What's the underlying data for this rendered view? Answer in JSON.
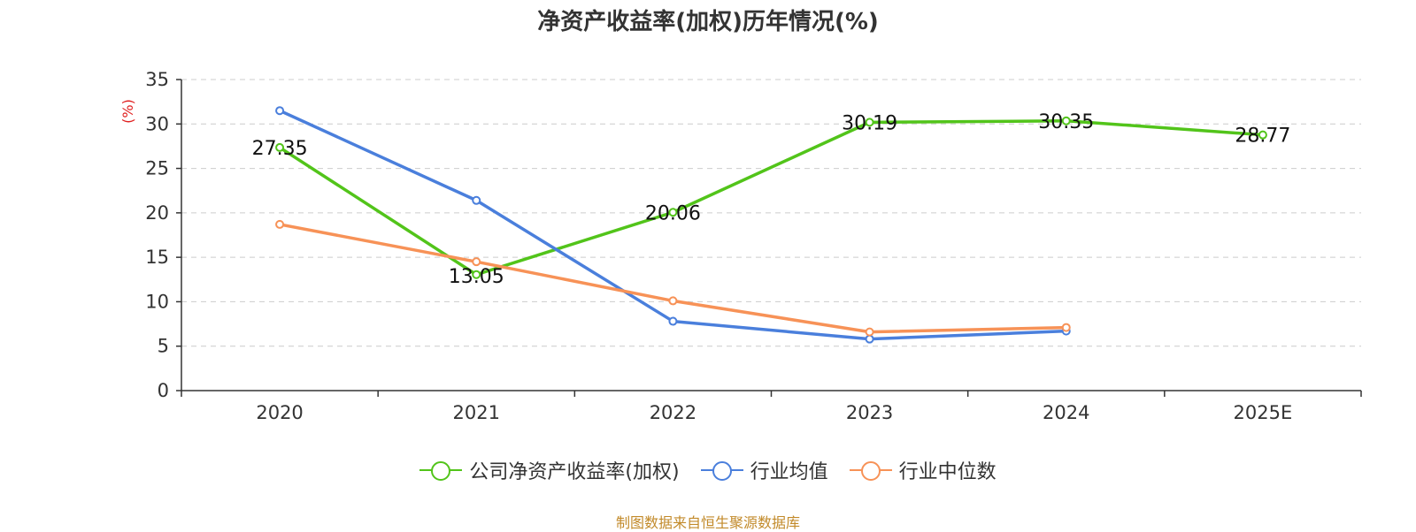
{
  "title": "净资产收益率(加权)历年情况(%)",
  "source": "制图数据来自恒生聚源数据库",
  "chart_data": {
    "type": "line",
    "categories": [
      "2020",
      "2021",
      "2022",
      "2023",
      "2024",
      "2025E"
    ],
    "ylabel": "(%)",
    "ylim": [
      0,
      35
    ],
    "yticks": [
      0,
      5,
      10,
      15,
      20,
      25,
      30,
      35
    ],
    "grid": true,
    "legend_position": "bottom",
    "series": [
      {
        "name": "公司净资产收益率(加权)",
        "color": "#52c41a",
        "values": [
          27.35,
          13.05,
          20.06,
          30.19,
          30.35,
          28.77
        ],
        "labels": true
      },
      {
        "name": "行业均值",
        "color": "#4a7fdc",
        "values": [
          31.5,
          21.4,
          7.8,
          5.8,
          6.7,
          null
        ],
        "labels": false
      },
      {
        "name": "行业中位数",
        "color": "#f79257",
        "values": [
          18.7,
          14.5,
          10.1,
          6.6,
          7.1,
          null
        ],
        "labels": false
      }
    ]
  }
}
